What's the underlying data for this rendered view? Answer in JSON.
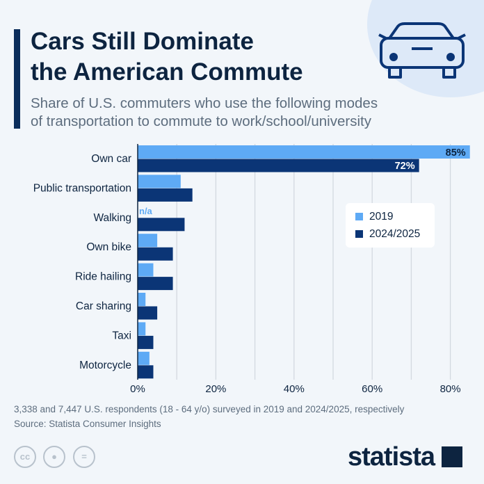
{
  "header": {
    "title_line1": "Cars Still Dominate",
    "title_line2": "the American Commute",
    "subtitle_line1": "Share of U.S. commuters who use the following modes",
    "subtitle_line2": "of transportation to commute to work/school/university"
  },
  "icons": {
    "header": "car-icon",
    "license": [
      "cc-icon",
      "attribution-icon",
      "no-derivatives-icon"
    ]
  },
  "chart_data": {
    "type": "bar",
    "orientation": "horizontal",
    "categories": [
      "Own car",
      "Public transportation",
      "Walking",
      "Own bike",
      "Ride hailing",
      "Car sharing",
      "Taxi",
      "Motorcycle"
    ],
    "series": [
      {
        "name": "2019",
        "color": "#5eaaf5",
        "values": [
          85,
          11,
          null,
          5,
          4,
          2,
          2,
          3
        ]
      },
      {
        "name": "2024/2025",
        "color": "#0b3576",
        "values": [
          72,
          14,
          12,
          9,
          9,
          5,
          4,
          4
        ]
      }
    ],
    "data_labels": {
      "own_car_2019": "85%",
      "own_car_2024": "72%",
      "walking_2019": "n/a"
    },
    "xlim": [
      0,
      85
    ],
    "xticks": [
      "0%",
      "20%",
      "40%",
      "60%",
      "80%"
    ],
    "grid": true,
    "legend_position": "right"
  },
  "footer": {
    "note": "3,338 and 7,447 U.S. respondents (18 - 64 y/o) surveyed in 2019 and 2024/2025, respectively",
    "source": "Source: Statista Consumer Insights",
    "logo": "statista"
  }
}
